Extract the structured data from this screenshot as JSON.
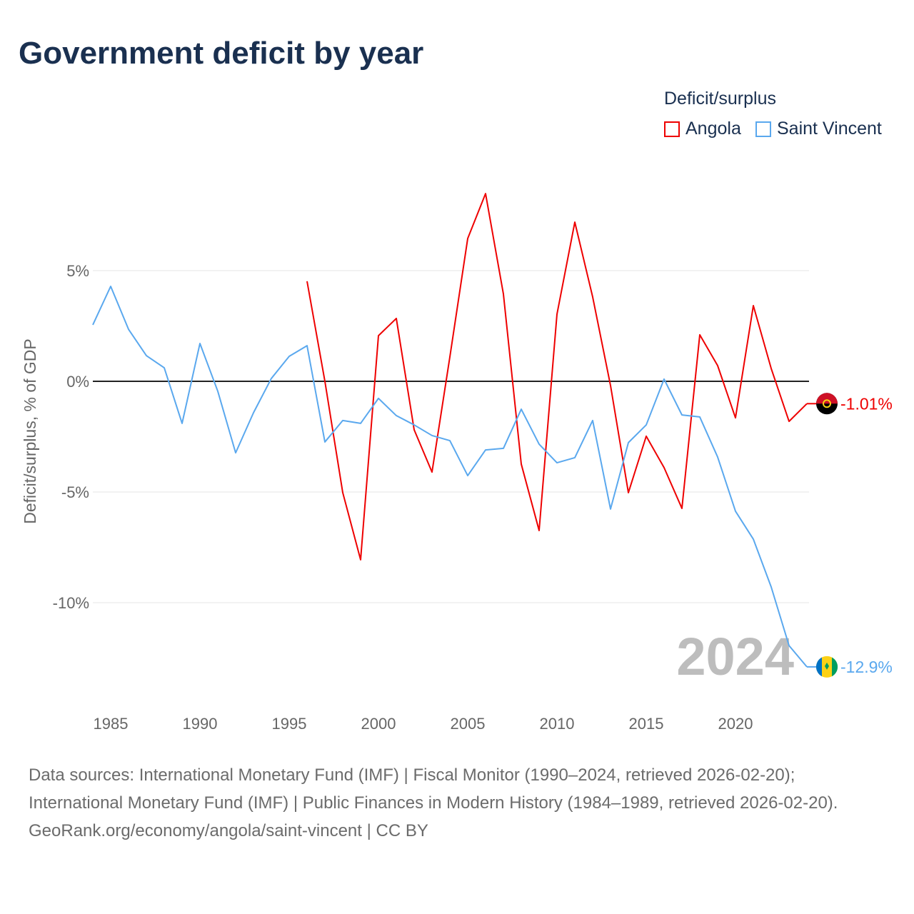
{
  "chart_data": {
    "type": "line",
    "title": "Government deficit by year",
    "xlabel": "",
    "ylabel": "Deficit/surplus, % of GDP",
    "ylim": [
      -13.5,
      8.6
    ],
    "xlim": [
      1984,
      2024
    ],
    "yticks": [
      5,
      0,
      -5,
      -10
    ],
    "ytick_labels": [
      "5%",
      "0%",
      "-5%",
      "-10%"
    ],
    "xticks": [
      1985,
      1990,
      1995,
      2000,
      2005,
      2010,
      2015,
      2020
    ],
    "xtick_labels": [
      "1985",
      "1990",
      "1995",
      "2000",
      "2005",
      "2010",
      "2015",
      "2020"
    ],
    "grid": true,
    "legend_title": "Deficit/surplus",
    "legend_position": "top-right",
    "year_watermark": "2024",
    "series": [
      {
        "name": "Angola",
        "color": "#ee0000",
        "end_label": "-1.01%",
        "flag": "angola-flag",
        "x": [
          1996,
          1997,
          1998,
          1999,
          2000,
          2001,
          2002,
          2003,
          2004,
          2005,
          2006,
          2007,
          2008,
          2009,
          2010,
          2011,
          2012,
          2013,
          2014,
          2015,
          2016,
          2017,
          2018,
          2019,
          2020,
          2021,
          2022,
          2023,
          2024
        ],
        "values": [
          4.52,
          0.0,
          -5.03,
          -8.06,
          2.06,
          2.84,
          -2.19,
          -4.1,
          1.1,
          6.45,
          8.48,
          3.94,
          -3.74,
          -6.74,
          3.03,
          7.19,
          3.81,
          -0.19,
          -5.03,
          -2.48,
          -3.9,
          -5.74,
          2.1,
          0.71,
          -1.65,
          3.42,
          0.58,
          -1.81,
          -1.01
        ]
      },
      {
        "name": "Saint Vincent",
        "color": "#5aa8ee",
        "end_label": "-12.9%",
        "flag": "saint-vincent-flag",
        "x": [
          1984,
          1985,
          1986,
          1987,
          1988,
          1989,
          1990,
          1991,
          1992,
          1993,
          1994,
          1995,
          1996,
          1997,
          1998,
          1999,
          2000,
          2001,
          2002,
          2003,
          2004,
          2005,
          2006,
          2007,
          2008,
          2009,
          2010,
          2011,
          2012,
          2013,
          2014,
          2015,
          2016,
          2017,
          2018,
          2019,
          2020,
          2021,
          2022,
          2023,
          2024
        ],
        "values": [
          2.55,
          4.29,
          2.35,
          1.16,
          0.61,
          -1.9,
          1.71,
          -0.45,
          -3.23,
          -1.42,
          0.13,
          1.13,
          1.61,
          -2.74,
          -1.77,
          -1.9,
          -0.77,
          -1.55,
          -1.97,
          -2.45,
          -2.68,
          -4.26,
          -3.1,
          -3.03,
          -1.26,
          -2.84,
          -3.68,
          -3.45,
          -1.77,
          -5.77,
          -2.77,
          -1.97,
          0.1,
          -1.52,
          -1.61,
          -3.42,
          -5.87,
          -7.13,
          -9.29,
          -11.94,
          -12.9
        ]
      }
    ]
  },
  "sources": {
    "line1": "Data sources: International Monetary Fund (IMF) | Fiscal Monitor (1990–2024, retrieved 2026-02-20); International Monetary Fund (IMF) | Public Finances in Modern History (1984–1989, retrieved 2026-02-20).",
    "line2": "GeoRank.org/economy/angola/saint-vincent | CC BY"
  }
}
